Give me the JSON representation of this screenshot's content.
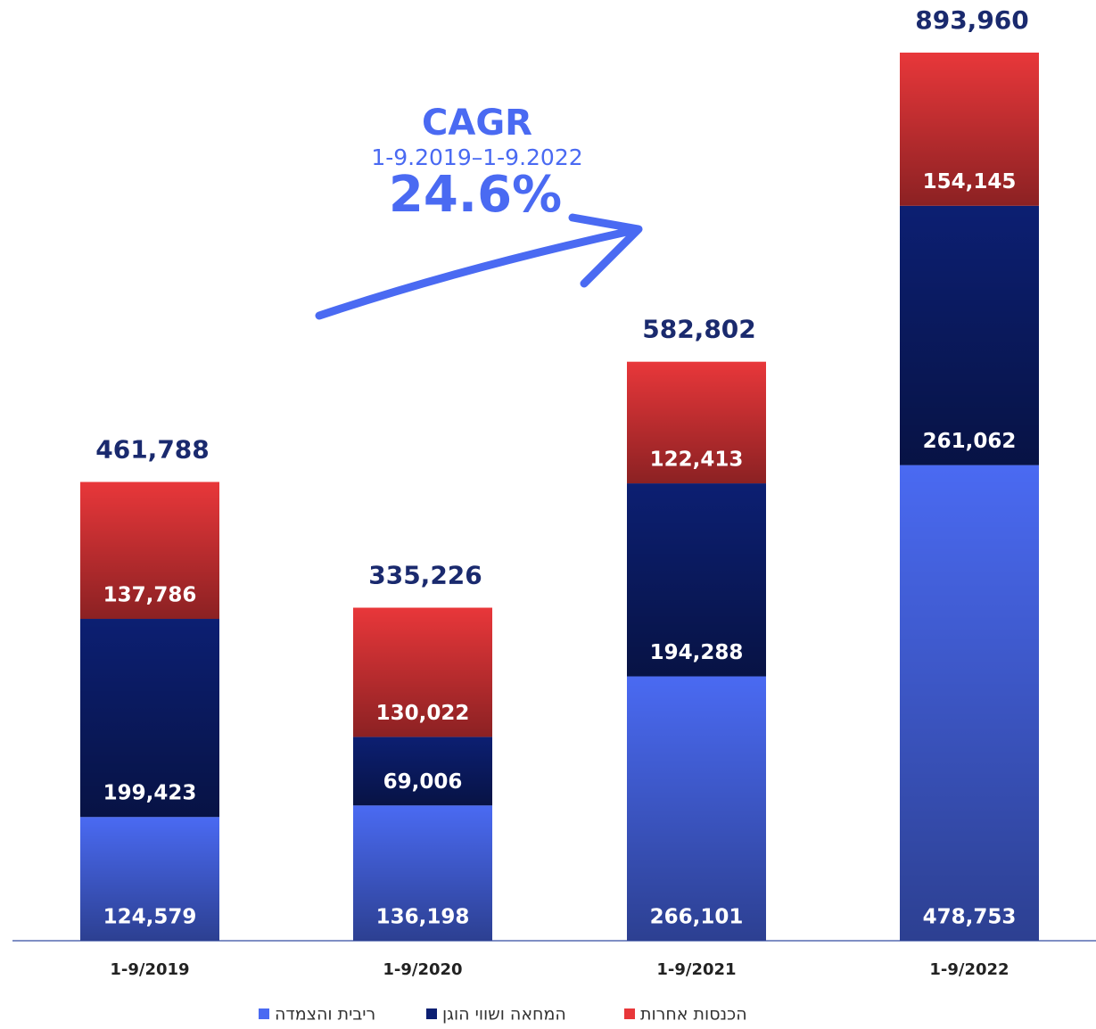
{
  "chart_data": {
    "type": "stacked_bar",
    "categories": [
      "1-9/2019",
      "1-9/2020",
      "1-9/2021",
      "1-9/2022"
    ],
    "series": [
      {
        "name": "ריבית והצמדה",
        "color": "#4a6af2",
        "values": [
          124579,
          136198,
          266101,
          478753
        ],
        "value_labels": [
          "124,579",
          "136,198",
          "266,101",
          "478,753"
        ]
      },
      {
        "name": "המחאה ושווי הוגן",
        "color": "#0c1f72",
        "values": [
          199423,
          69006,
          194288,
          261062
        ],
        "value_labels": [
          "199,423",
          "69,006",
          "194,288",
          "261,062"
        ]
      },
      {
        "name": "הכנסות אחרות",
        "color": "#e8373a",
        "values": [
          137786,
          130022,
          122413,
          154145
        ],
        "value_labels": [
          "137,786",
          "130,022",
          "122,413",
          "154,145"
        ]
      }
    ],
    "totals": [
      461788,
      335226,
      582802,
      893960
    ],
    "total_labels": [
      "461,788",
      "335,226",
      "582,802",
      "893,960"
    ],
    "annotations": [
      "CAGR",
      "1-9.2019–1-9.2022",
      "24.6%"
    ]
  }
}
